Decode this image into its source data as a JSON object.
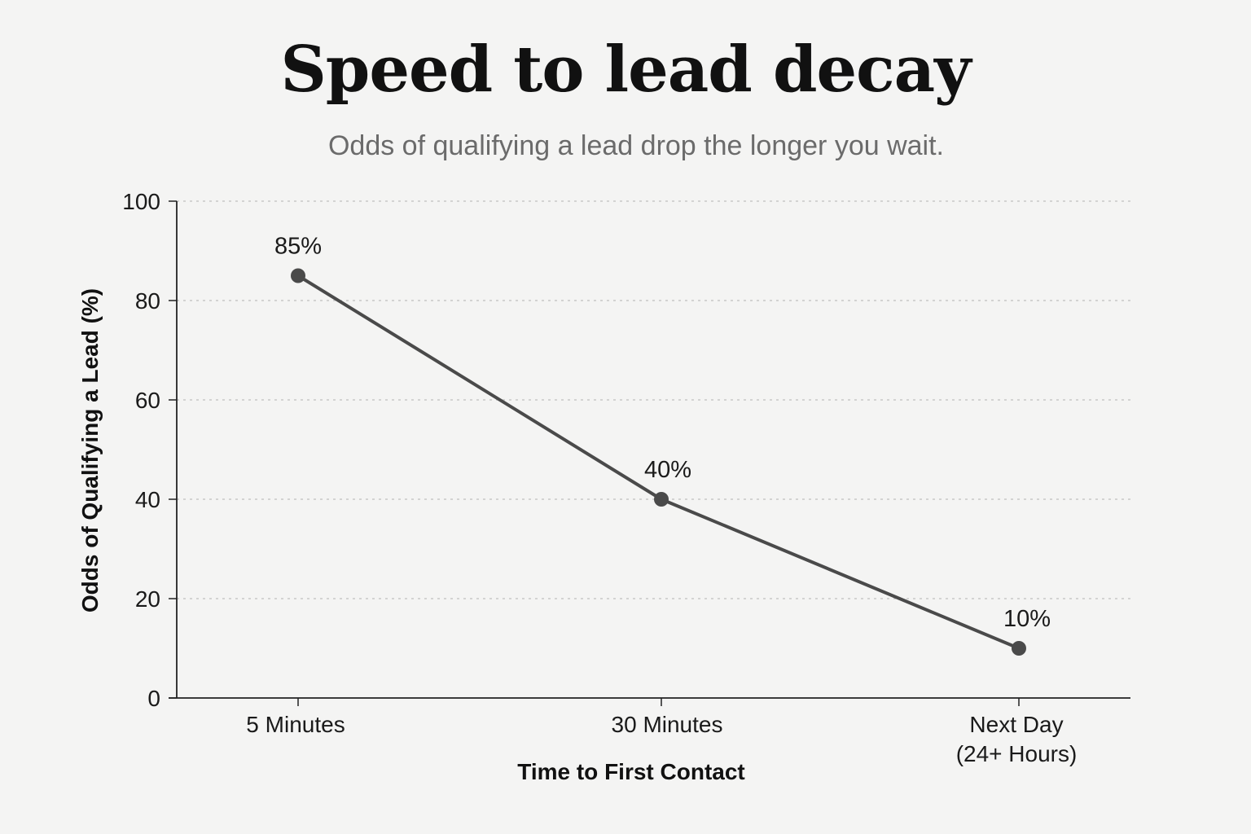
{
  "header": {
    "title": "Speed to lead decay",
    "subtitle": "Odds of qualifying a lead drop the longer you wait."
  },
  "chart_data": {
    "type": "line",
    "title": "Speed to lead decay",
    "subtitle": "Odds of qualifying a lead drop the longer you wait.",
    "xlabel": "Time to First Contact",
    "ylabel": "Odds of Qualifying a Lead (%)",
    "categories": [
      [
        "5 Minutes"
      ],
      [
        "30 Minutes"
      ],
      [
        "Next Day",
        "(24+ Hours)"
      ]
    ],
    "series": [
      {
        "values": [
          85,
          40,
          10
        ]
      }
    ],
    "data_labels": [
      "85%",
      "40%",
      "10%"
    ],
    "ylim": [
      0,
      100
    ],
    "yticks": [
      0,
      20,
      40,
      60,
      80,
      100
    ],
    "grid": "horizontal dotted",
    "legend": "none",
    "colors": {
      "line": "#4a4a4a",
      "marker": "#4a4a4a",
      "grid": "#c8c8c8",
      "axis": "#222222"
    }
  }
}
